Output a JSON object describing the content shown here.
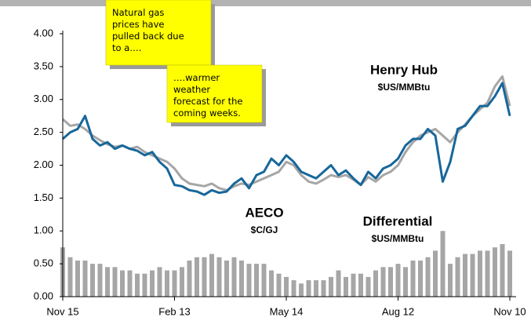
{
  "chart_data": {
    "type": "line",
    "categories": [
      "Nov 15",
      null,
      null,
      null,
      null,
      null,
      null,
      null,
      null,
      null,
      null,
      null,
      null,
      null,
      null,
      "Feb 13",
      null,
      null,
      null,
      null,
      null,
      null,
      null,
      null,
      null,
      null,
      null,
      null,
      null,
      null,
      "May 14",
      null,
      null,
      null,
      null,
      null,
      null,
      null,
      null,
      null,
      null,
      null,
      null,
      null,
      null,
      "Aug 12",
      null,
      null,
      null,
      null,
      null,
      null,
      null,
      null,
      null,
      null,
      null,
      null,
      null,
      null,
      "Nov 10"
    ],
    "ylim": [
      0,
      4.2
    ],
    "yticks": [
      {
        "value": 0,
        "label": "0.00"
      },
      {
        "value": 0.5,
        "label": "0.50"
      },
      {
        "value": 1,
        "label": "1.00"
      },
      {
        "value": 1.5,
        "label": "1.50"
      },
      {
        "value": 2,
        "label": "2.00"
      },
      {
        "value": 2.5,
        "label": "2.50"
      },
      {
        "value": 3,
        "label": "3.00"
      },
      {
        "value": 3.5,
        "label": "3.50"
      },
      {
        "value": 4,
        "label": "4.00"
      }
    ],
    "grid": false,
    "series": [
      {
        "name": "Differential",
        "unit": "$US/MMBtu",
        "type": "bar",
        "color": "#a6a6a6",
        "values": [
          0.75,
          0.6,
          0.55,
          0.55,
          0.5,
          0.5,
          0.45,
          0.45,
          0.4,
          0.4,
          0.35,
          0.35,
          0.4,
          0.45,
          0.4,
          0.4,
          0.45,
          0.55,
          0.6,
          0.6,
          0.65,
          0.6,
          0.55,
          0.6,
          0.55,
          0.5,
          0.5,
          0.5,
          0.4,
          0.35,
          0.3,
          0.25,
          0.2,
          0.25,
          0.25,
          0.25,
          0.3,
          0.4,
          0.3,
          0.35,
          0.35,
          0.3,
          0.4,
          0.45,
          0.45,
          0.5,
          0.45,
          0.55,
          0.55,
          0.6,
          0.7,
          1.0,
          0.5,
          0.6,
          0.65,
          0.65,
          0.7,
          0.7,
          0.75,
          0.8,
          0.7
        ]
      },
      {
        "name": "Henry Hub",
        "unit": "$US/MMBtu",
        "type": "line",
        "color": "#a6a6a6",
        "values": [
          2.7,
          2.6,
          2.62,
          2.55,
          2.45,
          2.38,
          2.32,
          2.28,
          2.3,
          2.25,
          2.28,
          2.2,
          2.15,
          2.1,
          2.05,
          1.95,
          1.8,
          1.72,
          1.7,
          1.68,
          1.72,
          1.65,
          1.62,
          1.68,
          1.72,
          1.7,
          1.75,
          1.8,
          1.85,
          1.9,
          2.05,
          2.0,
          1.85,
          1.75,
          1.72,
          1.78,
          1.85,
          1.82,
          1.85,
          1.78,
          1.7,
          1.82,
          1.75,
          1.85,
          1.9,
          2.0,
          2.2,
          2.35,
          2.45,
          2.5,
          2.55,
          2.45,
          2.35,
          2.5,
          2.62,
          2.75,
          2.85,
          2.95,
          3.2,
          3.35,
          2.9
        ]
      },
      {
        "name": "AECO",
        "unit": "$C/GJ",
        "type": "line",
        "color": "#17679a",
        "values": [
          2.4,
          2.5,
          2.55,
          2.75,
          2.4,
          2.3,
          2.35,
          2.25,
          2.3,
          2.25,
          2.22,
          2.15,
          2.2,
          2.05,
          1.95,
          1.7,
          1.68,
          1.62,
          1.6,
          1.55,
          1.62,
          1.58,
          1.6,
          1.72,
          1.8,
          1.65,
          1.85,
          1.9,
          2.1,
          2.0,
          2.15,
          2.05,
          1.9,
          1.85,
          1.8,
          1.9,
          2.0,
          1.85,
          1.92,
          1.8,
          1.7,
          1.9,
          1.8,
          1.95,
          2.0,
          2.1,
          2.3,
          2.4,
          2.4,
          2.55,
          2.45,
          1.75,
          2.05,
          2.55,
          2.6,
          2.75,
          2.9,
          2.9,
          3.05,
          3.25,
          2.75
        ]
      }
    ],
    "annotations": [
      {
        "lines": [
          "Natural gas",
          "prices have",
          "pulled back due",
          "to a…."
        ]
      },
      {
        "lines": [
          "….warmer",
          "weather",
          "forecast for the",
          "coming weeks."
        ]
      }
    ]
  }
}
